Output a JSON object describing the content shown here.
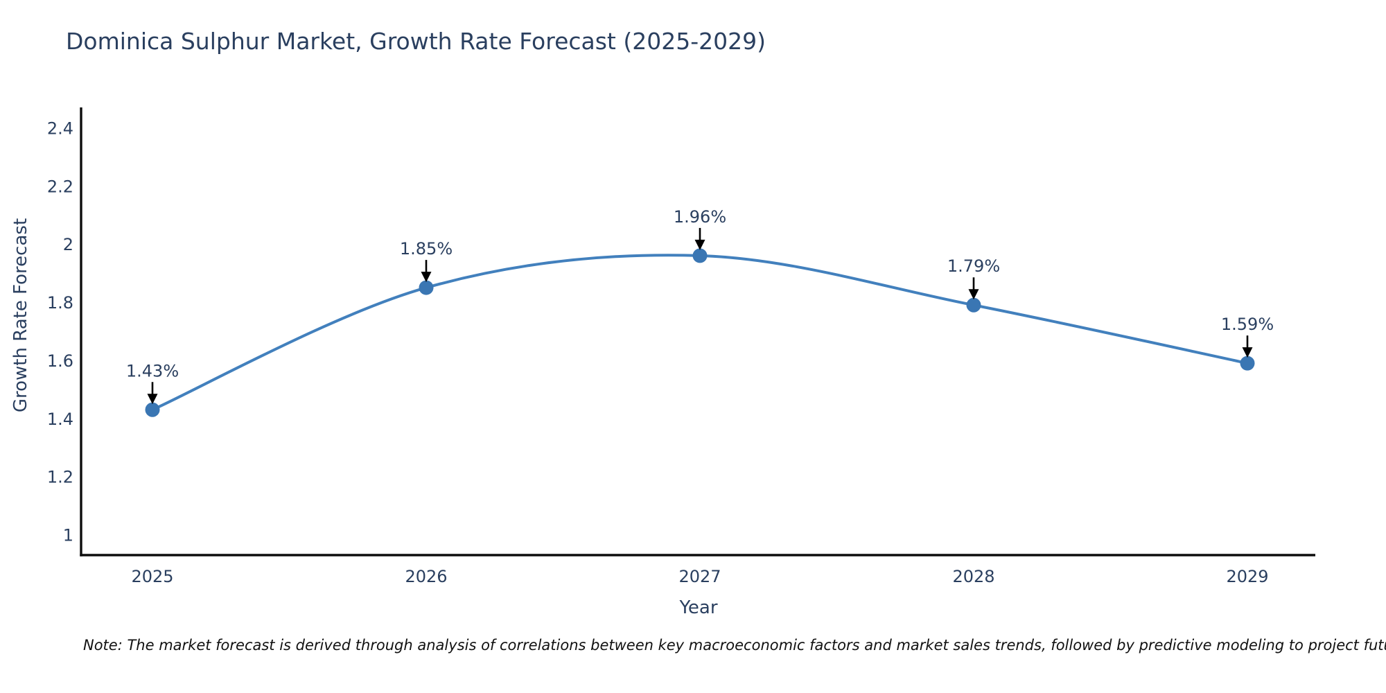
{
  "note": "Note: The market forecast is derived through analysis of correlations between key macroeconomic factors and market sales trends, followed by predictive modeling to project future sales",
  "chart_data": {
    "type": "line",
    "title": "Dominica Sulphur Market, Growth Rate Forecast (2025-2029)",
    "xlabel": "Year",
    "ylabel": "Growth Rate Forecast",
    "categories": [
      "2025",
      "2026",
      "2027",
      "2028",
      "2029"
    ],
    "series": [
      {
        "name": "Growth Rate Forecast",
        "values": [
          1.43,
          1.85,
          1.96,
          1.79,
          1.59
        ]
      }
    ],
    "point_labels": [
      "1.43%",
      "1.85%",
      "1.96%",
      "1.79%",
      "1.59%"
    ],
    "yticks": [
      1,
      1.2,
      1.4,
      1.6,
      1.8,
      2,
      2.2,
      2.4
    ],
    "ytick_labels": [
      "1",
      "1.2",
      "1.4",
      "1.6",
      "1.8",
      "2",
      "2.2",
      "2.4"
    ],
    "ylim": [
      0.93,
      2.47
    ],
    "grid": false,
    "legend": "none",
    "line_shape": "spline",
    "marker_size": 21,
    "colors": {
      "line": "#4280bd",
      "marker": "#3a76b3",
      "arrow": "#000000",
      "axis": "#0d0d0d",
      "text": "#2a3f5f",
      "title": "#2a3f5f",
      "note": "#111111"
    }
  }
}
